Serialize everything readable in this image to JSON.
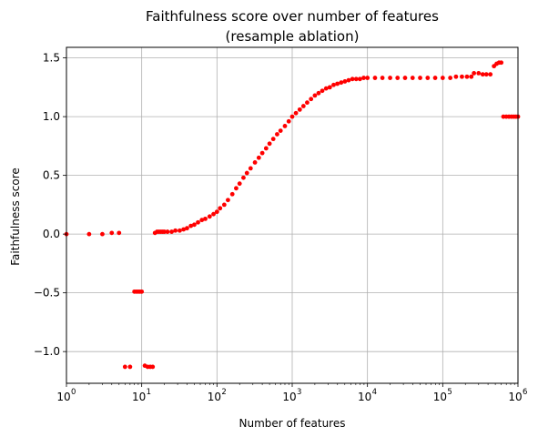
{
  "chart_data": {
    "type": "scatter",
    "title_lines": [
      "Faithfulness score over number of features",
      "(resample ablation)"
    ],
    "xlabel": "Number of features",
    "ylabel": "Faithfulness score",
    "xscale": "log",
    "xlim": [
      1,
      1000000
    ],
    "ylim": [
      -1.27,
      1.59
    ],
    "grid": true,
    "marker_color": "#ff0000",
    "x_ticks": [
      {
        "base": "10",
        "exp": "0",
        "value": 1
      },
      {
        "base": "10",
        "exp": "1",
        "value": 10
      },
      {
        "base": "10",
        "exp": "2",
        "value": 100
      },
      {
        "base": "10",
        "exp": "3",
        "value": 1000
      },
      {
        "base": "10",
        "exp": "4",
        "value": 10000
      },
      {
        "base": "10",
        "exp": "5",
        "value": 100000
      },
      {
        "base": "10",
        "exp": "6",
        "value": 1000000
      }
    ],
    "y_ticks": [
      {
        "label": "1.5",
        "value": 1.5
      },
      {
        "label": "1.0",
        "value": 1.0
      },
      {
        "label": "0.5",
        "value": 0.5
      },
      {
        "label": "0.0",
        "value": 0.0
      },
      {
        "label": "−0.5",
        "value": -0.5
      },
      {
        "label": "−1.0",
        "value": -1.0
      }
    ],
    "series": [
      {
        "points": [
          [
            1,
            0.0
          ],
          [
            2,
            0.0
          ],
          [
            3,
            0.0
          ],
          [
            4,
            0.01
          ],
          [
            5,
            0.01
          ],
          [
            6,
            -1.13
          ],
          [
            7,
            -1.13
          ],
          [
            8,
            -0.49
          ],
          [
            8.5,
            -0.49
          ],
          [
            9,
            -0.49
          ],
          [
            9.5,
            -0.49
          ],
          [
            10,
            -0.49
          ],
          [
            11,
            -1.12
          ],
          [
            12,
            -1.13
          ],
          [
            13,
            -1.13
          ],
          [
            14,
            -1.13
          ],
          [
            15,
            0.01
          ],
          [
            16,
            0.02
          ],
          [
            17,
            0.02
          ],
          [
            18,
            0.02
          ],
          [
            19,
            0.02
          ],
          [
            20,
            0.02
          ],
          [
            22,
            0.02
          ],
          [
            25,
            0.02
          ],
          [
            28,
            0.03
          ],
          [
            32,
            0.03
          ],
          [
            36,
            0.04
          ],
          [
            40,
            0.05
          ],
          [
            45,
            0.07
          ],
          [
            50,
            0.08
          ],
          [
            56,
            0.1
          ],
          [
            63,
            0.12
          ],
          [
            70,
            0.13
          ],
          [
            80,
            0.15
          ],
          [
            90,
            0.17
          ],
          [
            100,
            0.19
          ],
          [
            110,
            0.22
          ],
          [
            125,
            0.25
          ],
          [
            140,
            0.29
          ],
          [
            160,
            0.34
          ],
          [
            180,
            0.39
          ],
          [
            200,
            0.43
          ],
          [
            225,
            0.48
          ],
          [
            250,
            0.52
          ],
          [
            280,
            0.56
          ],
          [
            320,
            0.61
          ],
          [
            360,
            0.65
          ],
          [
            400,
            0.69
          ],
          [
            450,
            0.73
          ],
          [
            500,
            0.77
          ],
          [
            560,
            0.81
          ],
          [
            630,
            0.85
          ],
          [
            700,
            0.88
          ],
          [
            800,
            0.92
          ],
          [
            900,
            0.96
          ],
          [
            1000,
            1.0
          ],
          [
            1120,
            1.03
          ],
          [
            1260,
            1.06
          ],
          [
            1410,
            1.09
          ],
          [
            1580,
            1.12
          ],
          [
            1780,
            1.15
          ],
          [
            2000,
            1.18
          ],
          [
            2240,
            1.2
          ],
          [
            2510,
            1.22
          ],
          [
            2820,
            1.24
          ],
          [
            3160,
            1.25
          ],
          [
            3550,
            1.27
          ],
          [
            3980,
            1.28
          ],
          [
            4470,
            1.29
          ],
          [
            5010,
            1.3
          ],
          [
            5620,
            1.31
          ],
          [
            6310,
            1.32
          ],
          [
            7080,
            1.32
          ],
          [
            7940,
            1.32
          ],
          [
            8910,
            1.33
          ],
          [
            10000,
            1.33
          ],
          [
            12600,
            1.33
          ],
          [
            15800,
            1.33
          ],
          [
            20000,
            1.33
          ],
          [
            25100,
            1.33
          ],
          [
            31600,
            1.33
          ],
          [
            39800,
            1.33
          ],
          [
            50100,
            1.33
          ],
          [
            63100,
            1.33
          ],
          [
            79400,
            1.33
          ],
          [
            100000,
            1.33
          ],
          [
            126000,
            1.33
          ],
          [
            150000,
            1.34
          ],
          [
            180000,
            1.34
          ],
          [
            210000,
            1.34
          ],
          [
            240000,
            1.34
          ],
          [
            260000,
            1.37
          ],
          [
            300000,
            1.37
          ],
          [
            340000,
            1.36
          ],
          [
            380000,
            1.36
          ],
          [
            430000,
            1.36
          ],
          [
            480000,
            1.43
          ],
          [
            520000,
            1.45
          ],
          [
            560000,
            1.46
          ],
          [
            600000,
            1.46
          ],
          [
            640000,
            1.0
          ],
          [
            700000,
            1.0
          ],
          [
            760000,
            1.0
          ],
          [
            820000,
            1.0
          ],
          [
            880000,
            1.0
          ],
          [
            940000,
            1.0
          ],
          [
            1000000,
            1.0
          ]
        ]
      }
    ]
  }
}
